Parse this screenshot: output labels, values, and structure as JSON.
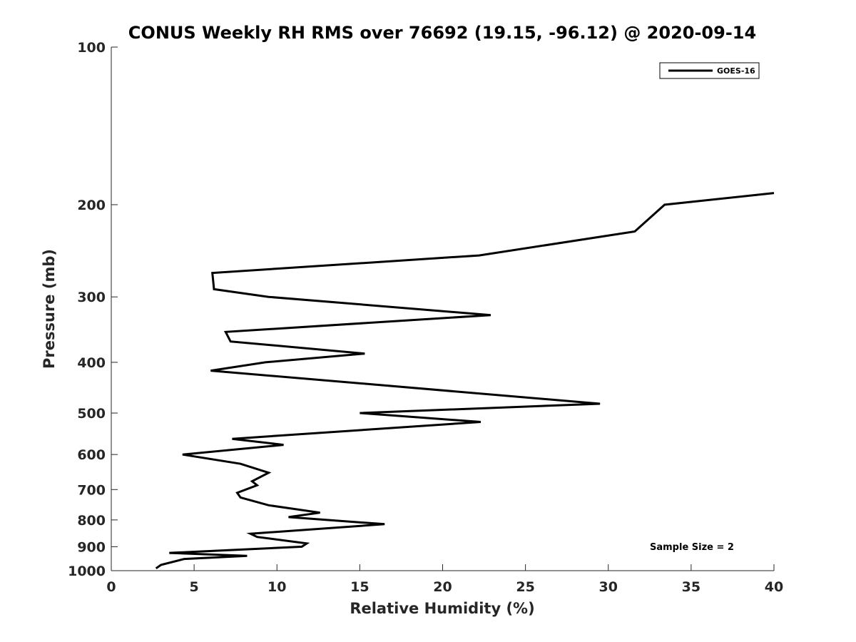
{
  "chart_data": {
    "type": "line",
    "title": "CONUS Weekly RH RMS over 76692 (19.15, -96.12) @ 2020-09-14",
    "xlabel": "Relative Humidity (%)",
    "ylabel": "Pressure (mb)",
    "xlim": [
      0,
      40
    ],
    "ylim": [
      100,
      1000
    ],
    "y_scale": "log",
    "y_reversed": true,
    "x_ticks": [
      "0",
      "5",
      "10",
      "15",
      "20",
      "25",
      "30",
      "35",
      "40"
    ],
    "y_ticks": [
      "100",
      "200",
      "300",
      "400",
      "500",
      "600",
      "700",
      "800",
      "900",
      "1000"
    ],
    "grid": false,
    "legend_position": "top-right",
    "annotation": "Sample Size = 2",
    "series": [
      {
        "name": "GOES-16",
        "color": "#000000",
        "points": [
          [
            40.0,
            190
          ],
          [
            33.4,
            200
          ],
          [
            31.6,
            225
          ],
          [
            22.2,
            250
          ],
          [
            6.1,
            270
          ],
          [
            6.2,
            290
          ],
          [
            9.5,
            300
          ],
          [
            22.9,
            325
          ],
          [
            6.9,
            350
          ],
          [
            7.2,
            365
          ],
          [
            15.3,
            385
          ],
          [
            9.3,
            400
          ],
          [
            6.0,
            415
          ],
          [
            29.5,
            480
          ],
          [
            15.0,
            500
          ],
          [
            22.3,
            520
          ],
          [
            7.3,
            560
          ],
          [
            10.4,
            575
          ],
          [
            4.3,
            600
          ],
          [
            7.8,
            625
          ],
          [
            9.5,
            650
          ],
          [
            8.5,
            675
          ],
          [
            8.8,
            687
          ],
          [
            7.6,
            710
          ],
          [
            7.8,
            725
          ],
          [
            9.5,
            750
          ],
          [
            12.6,
            775
          ],
          [
            10.7,
            790
          ],
          [
            16.5,
            815
          ],
          [
            8.4,
            850
          ],
          [
            8.8,
            862
          ],
          [
            11.8,
            887
          ],
          [
            11.5,
            900
          ],
          [
            3.5,
            925
          ],
          [
            8.2,
            937
          ],
          [
            4.4,
            950
          ],
          [
            3.0,
            975
          ],
          [
            2.7,
            990
          ]
        ]
      }
    ]
  }
}
